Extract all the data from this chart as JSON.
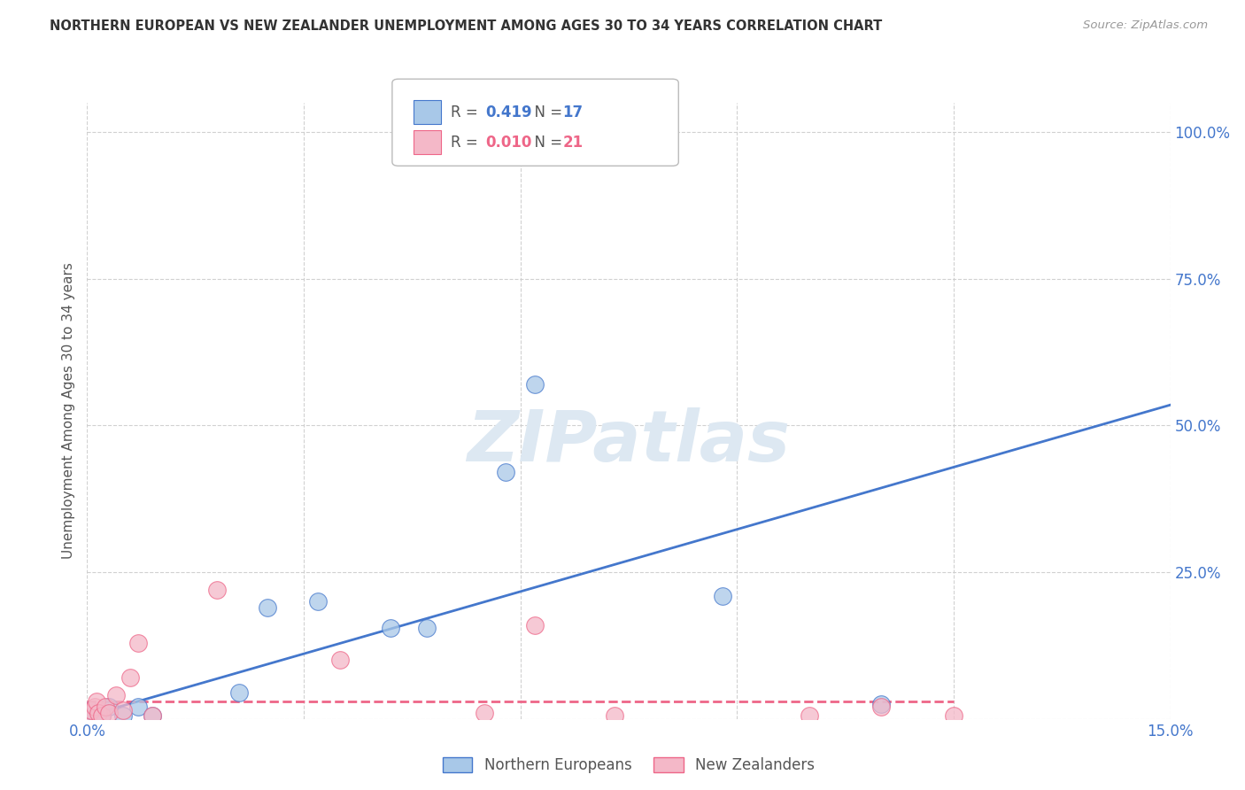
{
  "title": "NORTHERN EUROPEAN VS NEW ZEALANDER UNEMPLOYMENT AMONG AGES 30 TO 34 YEARS CORRELATION CHART",
  "source": "Source: ZipAtlas.com",
  "ylabel": "Unemployment Among Ages 30 to 34 years",
  "xlim": [
    0.0,
    0.15
  ],
  "ylim": [
    0.0,
    1.05
  ],
  "xticks": [
    0.0,
    0.03,
    0.06,
    0.09,
    0.12,
    0.15
  ],
  "yticks": [
    0.0,
    0.25,
    0.5,
    0.75,
    1.0
  ],
  "ytick_labels": [
    "",
    "25.0%",
    "50.0%",
    "75.0%",
    "100.0%"
  ],
  "blue_scatter_x": [
    0.0005,
    0.001,
    0.0015,
    0.002,
    0.003,
    0.005,
    0.007,
    0.009,
    0.021,
    0.025,
    0.032,
    0.042,
    0.047,
    0.058,
    0.062,
    0.088,
    0.11
  ],
  "blue_scatter_y": [
    0.015,
    0.01,
    0.01,
    0.005,
    0.02,
    0.005,
    0.02,
    0.005,
    0.045,
    0.19,
    0.2,
    0.155,
    0.155,
    0.42,
    0.57,
    0.21,
    0.025
  ],
  "pink_scatter_x": [
    0.0003,
    0.0006,
    0.001,
    0.0013,
    0.0016,
    0.002,
    0.0025,
    0.003,
    0.004,
    0.005,
    0.006,
    0.007,
    0.009,
    0.018,
    0.035,
    0.055,
    0.062,
    0.073,
    0.1,
    0.11,
    0.12
  ],
  "pink_scatter_y": [
    0.01,
    0.015,
    0.02,
    0.03,
    0.01,
    0.005,
    0.02,
    0.01,
    0.04,
    0.015,
    0.07,
    0.13,
    0.005,
    0.22,
    0.1,
    0.01,
    0.16,
    0.005,
    0.005,
    0.02,
    0.005
  ],
  "blue_line_x": [
    0.0,
    0.15
  ],
  "blue_line_y": [
    0.005,
    0.535
  ],
  "pink_line_x": [
    0.0,
    0.12
  ],
  "pink_line_y": [
    0.03,
    0.03
  ],
  "blue_color": "#a8c8e8",
  "pink_color": "#f4b8c8",
  "blue_line_color": "#4477cc",
  "pink_line_color": "#ee6688",
  "legend_R_blue": "0.419",
  "legend_N_blue": "17",
  "legend_R_pink": "0.010",
  "legend_N_pink": "21",
  "legend_label_blue": "Northern Europeans",
  "legend_label_pink": "New Zealanders",
  "watermark": "ZIPatlas",
  "background_color": "#ffffff",
  "grid_color": "#cccccc"
}
